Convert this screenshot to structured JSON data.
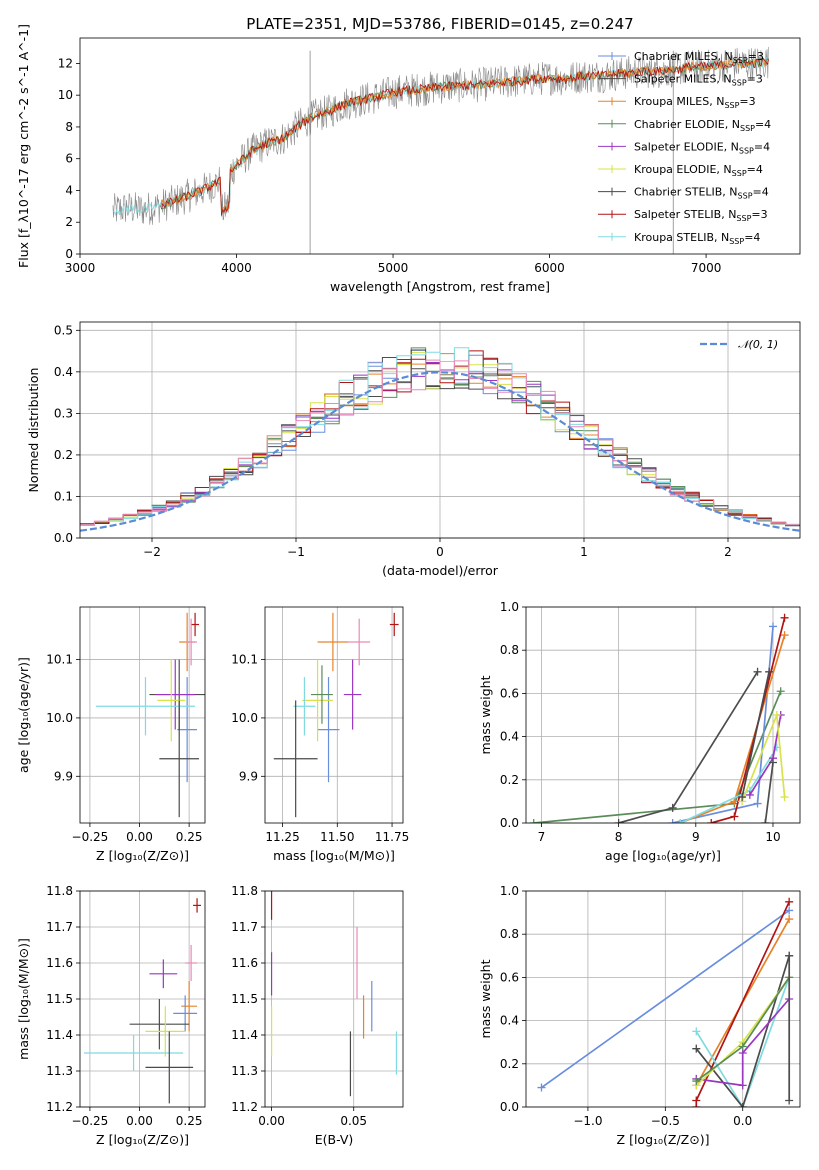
{
  "title": "PLATE=2351, MJD=53786, FIBERID=0145, z=0.247",
  "colors": {
    "Chabrier MILES": "#6a8ede",
    "Salpeter MILES": "#4d4d4d",
    "Kroupa MILES": "#e6832a",
    "Chabrier ELODIE": "#5a8c5a",
    "Salpeter ELODIE": "#9b36c2",
    "Kroupa ELODIE": "#d8e34a",
    "Chabrier STELIB": "#4a4a4a",
    "Salpeter STELIB": "#b01414",
    "Kroupa STELIB": "#7fdbe0",
    "pink": "#e88ab8",
    "normal": "#5b8bd6"
  },
  "chart_data": [
    {
      "id": "spectrum",
      "type": "line",
      "xlabel": "wavelength [Angstrom, rest frame]",
      "ylabel": "Flux [f_λ10^-17 erg cm^-2 s^-1 A^-1]",
      "xlim": [
        3000,
        7600
      ],
      "ylim": [
        0,
        13.6
      ],
      "xticks": [
        3000,
        4000,
        5000,
        6000,
        7000
      ],
      "yticks": [
        0,
        2,
        4,
        6,
        8,
        10,
        12
      ],
      "grid": false,
      "legend_position": "top-right",
      "legend": [
        {
          "label": "Chabrier MILES, N",
          "sub": "SSP",
          "tail": "=3",
          "color_key": "Chabrier MILES"
        },
        {
          "label": "Salpeter MILES, N",
          "sub": "SSP",
          "tail": "=3",
          "color_key": "Salpeter MILES"
        },
        {
          "label": "Kroupa MILES, N",
          "sub": "SSP",
          "tail": "=3",
          "color_key": "Kroupa MILES"
        },
        {
          "label": "Chabrier ELODIE, N",
          "sub": "SSP",
          "tail": "=4",
          "color_key": "Chabrier ELODIE"
        },
        {
          "label": "Salpeter ELODIE, N",
          "sub": "SSP",
          "tail": "=4",
          "color_key": "Salpeter ELODIE"
        },
        {
          "label": "Kroupa ELODIE, N",
          "sub": "SSP",
          "tail": "=4",
          "color_key": "Kroupa ELODIE"
        },
        {
          "label": "Chabrier STELIB, N",
          "sub": "SSP",
          "tail": "=4",
          "color_key": "Chabrier STELIB"
        },
        {
          "label": "Salpeter STELIB, N",
          "sub": "SSP",
          "tail": "=3",
          "color_key": "Salpeter STELIB"
        },
        {
          "label": "Kroupa STELIB, N",
          "sub": "SSP",
          "tail": "=4",
          "color_key": "Kroupa STELIB"
        }
      ],
      "envelope_x": [
        3200,
        3300,
        3400,
        3500,
        3600,
        3700,
        3800,
        3900,
        4000,
        4100,
        4200,
        4300,
        4400,
        4500,
        4600,
        4700,
        4800,
        4900,
        5000,
        5100,
        5200,
        5300,
        5400,
        5500,
        5600,
        5700,
        5800,
        5900,
        6000,
        6100,
        6200,
        6300,
        6400,
        6500,
        6600,
        6700,
        6800,
        6900,
        7000,
        7100,
        7200,
        7300,
        7400
      ],
      "envelope_y": [
        2.7,
        2.9,
        2.8,
        3.0,
        3.3,
        3.7,
        4.1,
        4.6,
        5.6,
        6.5,
        7.0,
        7.3,
        8.1,
        8.7,
        9.0,
        9.5,
        9.7,
        9.9,
        10.2,
        10.3,
        10.4,
        10.5,
        10.6,
        10.6,
        10.7,
        10.8,
        10.9,
        11.0,
        11.1,
        11.0,
        11.2,
        11.2,
        11.3,
        11.4,
        11.5,
        11.5,
        11.6,
        11.8,
        11.8,
        11.9,
        12.0,
        12.0,
        12.1
      ]
    },
    {
      "id": "residuals",
      "type": "line",
      "xlabel": "(data-model)/error",
      "ylabel": "Normed distribution",
      "xlim": [
        -2.5,
        2.5
      ],
      "ylim": [
        0,
        0.52
      ],
      "xticks": [
        -2,
        -1,
        0,
        1,
        2
      ],
      "yticks": [
        0.0,
        0.1,
        0.2,
        0.3,
        0.4,
        0.5
      ],
      "grid": true,
      "legend_position": "top-right",
      "normal_label": "𝒩(0, 1)",
      "hist_series": [
        "Chabrier MILES",
        "Salpeter MILES",
        "Kroupa MILES",
        "Chabrier ELODIE",
        "Salpeter ELODIE",
        "Kroupa ELODIE",
        "Chabrier STELIB",
        "Salpeter STELIB",
        "Kroupa STELIB"
      ]
    },
    {
      "id": "age_vs_Z",
      "type": "scatter",
      "xlabel": "Z [log₁₀(Z/Z⊙)]",
      "ylabel": "age  [log₁₀(age/yr)]",
      "xlim": [
        -0.3,
        0.33
      ],
      "ylim": [
        9.82,
        10.19
      ],
      "xticks": [
        -0.25,
        0.0,
        0.25
      ],
      "yticks": [
        9.9,
        10.0,
        10.1
      ],
      "grid": true,
      "points": [
        {
          "c": "Salpeter STELIB",
          "x": 0.28,
          "xerr": 0.02,
          "y": 10.16,
          "yerr": 0.02
        },
        {
          "c": "Kroupa MILES",
          "x": 0.24,
          "xerr": 0.04,
          "y": 10.13,
          "yerr": 0.05
        },
        {
          "c": "pink",
          "x": 0.26,
          "xerr": 0.03,
          "y": 10.13,
          "yerr": 0.04
        },
        {
          "c": "Chabrier MILES",
          "x": 0.24,
          "xerr": 0.05,
          "y": 9.98,
          "yerr": 0.09
        },
        {
          "c": "Salpeter MILES",
          "x": 0.2,
          "xerr": 0.15,
          "y": 10.04,
          "yerr": 0.06
        },
        {
          "c": "Salpeter ELODIE",
          "x": 0.18,
          "xerr": 0.1,
          "y": 10.04,
          "yerr": 0.06
        },
        {
          "c": "Kroupa ELODIE",
          "x": 0.16,
          "xerr": 0.07,
          "y": 10.03,
          "yerr": 0.07
        },
        {
          "c": "Kroupa STELIB",
          "x": 0.03,
          "xerr": 0.25,
          "y": 10.02,
          "yerr": 0.05
        },
        {
          "c": "Chabrier STELIB",
          "x": 0.2,
          "xerr": 0.1,
          "y": 9.93,
          "yerr": 0.1
        }
      ]
    },
    {
      "id": "age_vs_mass",
      "type": "scatter",
      "xlabel": "mass [log₁₀(M/M⊙)]",
      "ylabel": "",
      "xlim": [
        11.17,
        11.8
      ],
      "ylim": [
        9.82,
        10.19
      ],
      "xticks": [
        11.25,
        11.5,
        11.75
      ],
      "yticks": [
        9.9,
        10.0,
        10.1
      ],
      "grid": true,
      "points": [
        {
          "c": "Salpeter STELIB",
          "x": 11.76,
          "xerr": 0.02,
          "y": 10.16,
          "yerr": 0.02
        },
        {
          "c": "Kroupa MILES",
          "x": 11.48,
          "xerr": 0.07,
          "y": 10.13,
          "yerr": 0.05
        },
        {
          "c": "pink",
          "x": 11.6,
          "xerr": 0.05,
          "y": 10.13,
          "yerr": 0.04
        },
        {
          "c": "Chabrier MILES",
          "x": 11.46,
          "xerr": 0.05,
          "y": 9.98,
          "yerr": 0.09
        },
        {
          "c": "Salpeter ELODIE",
          "x": 11.57,
          "xerr": 0.04,
          "y": 10.04,
          "yerr": 0.06
        },
        {
          "c": "Kroupa ELODIE",
          "x": 11.41,
          "xerr": 0.07,
          "y": 10.03,
          "yerr": 0.07
        },
        {
          "c": "Chabrier ELODIE",
          "x": 11.43,
          "xerr": 0.05,
          "y": 10.04,
          "yerr": 0.05
        },
        {
          "c": "Kroupa STELIB",
          "x": 11.35,
          "xerr": 0.05,
          "y": 10.02,
          "yerr": 0.05
        },
        {
          "c": "Chabrier STELIB",
          "x": 11.31,
          "xerr": 0.1,
          "y": 9.93,
          "yerr": 0.1
        }
      ]
    },
    {
      "id": "weight_vs_age",
      "type": "line",
      "xlabel": "age  [log₁₀(age/yr)]",
      "ylabel": "mass weight",
      "xlim": [
        6.8,
        10.35
      ],
      "ylim": [
        0,
        1.0
      ],
      "xticks": [
        7,
        8,
        9,
        10
      ],
      "yticks": [
        0.0,
        0.2,
        0.4,
        0.6,
        0.8,
        1.0
      ],
      "grid": true,
      "series": [
        {
          "c": "Chabrier ELODIE",
          "x": [
            6.9,
            9.5,
            10.1
          ],
          "y": [
            0.0,
            0.09,
            0.61
          ]
        },
        {
          "c": "Salpeter MILES",
          "x": [
            8.0,
            8.7,
            9.8
          ],
          "y": [
            0.0,
            0.07,
            0.7
          ]
        },
        {
          "c": "Chabrier MILES",
          "x": [
            8.7,
            9.8,
            10.0
          ],
          "y": [
            0.0,
            0.09,
            0.91
          ]
        },
        {
          "c": "Kroupa MILES",
          "x": [
            8.8,
            9.5,
            10.15
          ],
          "y": [
            0.0,
            0.1,
            0.87
          ]
        },
        {
          "c": "Salpeter STELIB",
          "x": [
            9.2,
            9.5,
            10.15
          ],
          "y": [
            0.0,
            0.03,
            0.95
          ]
        },
        {
          "c": "Kroupa STELIB",
          "x": [
            8.8,
            9.7,
            10.05
          ],
          "y": [
            0.0,
            0.15,
            0.35
          ]
        },
        {
          "c": "Salpeter ELODIE",
          "x": [
            9.7,
            10.0,
            10.1
          ],
          "y": [
            0.13,
            0.3,
            0.5
          ]
        },
        {
          "c": "Kroupa ELODIE",
          "x": [
            9.6,
            10.05,
            10.15
          ],
          "y": [
            0.1,
            0.5,
            0.12
          ]
        },
        {
          "c": "Salpeter MILES",
          "x": [
            9.9,
            10.0
          ],
          "y": [
            0.0,
            0.28
          ]
        },
        {
          "c": "Chabrier STELIB",
          "x": [
            9.6,
            9.95
          ],
          "y": [
            0.12,
            0.7
          ]
        }
      ]
    },
    {
      "id": "mass_vs_Z",
      "type": "scatter",
      "xlabel": "Z [log₁₀(Z/Z⊙)]",
      "ylabel": "mass [log₁₀(M/M⊙)]",
      "xlim": [
        -0.3,
        0.33
      ],
      "ylim": [
        11.2,
        11.8
      ],
      "xticks": [
        -0.25,
        0.0,
        0.25
      ],
      "yticks": [
        11.2,
        11.3,
        11.4,
        11.5,
        11.6,
        11.7,
        11.8
      ],
      "grid": true,
      "points": [
        {
          "c": "Salpeter STELIB",
          "x": 0.29,
          "xerr": 0.02,
          "y": 11.76,
          "yerr": 0.02
        },
        {
          "c": "pink",
          "x": 0.26,
          "xerr": 0.03,
          "y": 11.6,
          "yerr": 0.05
        },
        {
          "c": "Salpeter ELODIE",
          "x": 0.12,
          "xerr": 0.07,
          "y": 11.57,
          "yerr": 0.04
        },
        {
          "c": "Kroupa MILES",
          "x": 0.25,
          "xerr": 0.04,
          "y": 11.48,
          "yerr": 0.07
        },
        {
          "c": "Chabrier MILES",
          "x": 0.23,
          "xerr": 0.06,
          "y": 11.46,
          "yerr": 0.05
        },
        {
          "c": "Salpeter MILES",
          "x": 0.1,
          "xerr": 0.15,
          "y": 11.43,
          "yerr": 0.07
        },
        {
          "c": "Kroupa ELODIE",
          "x": 0.13,
          "xerr": 0.1,
          "y": 11.41,
          "yerr": 0.07
        },
        {
          "c": "Kroupa STELIB",
          "x": -0.03,
          "xerr": 0.25,
          "y": 11.35,
          "yerr": 0.05
        },
        {
          "c": "Chabrier STELIB",
          "x": 0.15,
          "xerr": 0.12,
          "y": 11.31,
          "yerr": 0.1
        }
      ]
    },
    {
      "id": "mass_vs_ebv",
      "type": "scatter",
      "xlabel": "E(B-V)",
      "ylabel": "",
      "xlim": [
        -0.004,
        0.08
      ],
      "ylim": [
        11.2,
        11.8
      ],
      "xticks": [
        0.0,
        0.05
      ],
      "yticks": [
        11.2,
        11.3,
        11.4,
        11.5,
        11.6,
        11.7,
        11.8
      ],
      "grid": true,
      "points": [
        {
          "c": "Salpeter STELIB",
          "x": 0.0,
          "xerr": 0.0,
          "y": 11.76,
          "yerr": 0.04
        },
        {
          "c": "Salpeter ELODIE",
          "x": 0.0,
          "xerr": 0.0,
          "y": 11.57,
          "yerr": 0.06
        },
        {
          "c": "Kroupa ELODIE",
          "x": 0.0,
          "xerr": 0.0,
          "y": 11.41,
          "yerr": 0.07
        },
        {
          "c": "pink",
          "x": 0.052,
          "xerr": 0.0,
          "y": 11.6,
          "yerr": 0.1
        },
        {
          "c": "Chabrier MILES",
          "x": 0.061,
          "xerr": 0.0,
          "y": 11.48,
          "yerr": 0.07
        },
        {
          "c": "Kroupa MILES",
          "x": 0.056,
          "xerr": 0.0,
          "y": 11.45,
          "yerr": 0.06
        },
        {
          "c": "Chabrier STELIB",
          "x": 0.048,
          "xerr": 0.0,
          "y": 11.32,
          "yerr": 0.09
        },
        {
          "c": "Kroupa STELIB",
          "x": 0.076,
          "xerr": 0.0,
          "y": 11.35,
          "yerr": 0.06
        }
      ]
    },
    {
      "id": "weight_vs_Z",
      "type": "line",
      "xlabel": "Z [log₁₀(Z/Z⊙)]",
      "ylabel": "mass weight",
      "xlim": [
        -1.4,
        0.37
      ],
      "ylim": [
        0,
        1.0
      ],
      "xticks": [
        -1.0,
        -0.5,
        0.0
      ],
      "yticks": [
        0.0,
        0.2,
        0.4,
        0.6,
        0.8,
        1.0
      ],
      "grid": true,
      "series": [
        {
          "c": "Chabrier MILES",
          "x": [
            -1.3,
            0.3
          ],
          "y": [
            0.09,
            0.91
          ]
        },
        {
          "c": "Kroupa MILES",
          "x": [
            -0.3,
            0.3
          ],
          "y": [
            0.1,
            0.87
          ]
        },
        {
          "c": "Salpeter STELIB",
          "x": [
            -0.3,
            -0.3,
            0.3
          ],
          "y": [
            0.0,
            0.03,
            0.95
          ]
        },
        {
          "c": "Kroupa STELIB",
          "x": [
            -0.3,
            0.0,
            0.3
          ],
          "y": [
            0.35,
            0.0,
            0.6
          ]
        },
        {
          "c": "Chabrier STELIB",
          "x": [
            -0.3,
            0.0,
            0.3
          ],
          "y": [
            0.27,
            0.0,
            0.7
          ]
        },
        {
          "c": "Salpeter ELODIE",
          "x": [
            -0.3,
            0.0,
            0.0,
            0.3
          ],
          "y": [
            0.13,
            0.1,
            0.25,
            0.5
          ]
        },
        {
          "c": "Kroupa ELODIE",
          "x": [
            -0.3,
            0.0,
            0.3
          ],
          "y": [
            0.1,
            0.3,
            0.6
          ]
        },
        {
          "c": "Chabrier ELODIE",
          "x": [
            -0.3,
            0.0,
            0.3
          ],
          "y": [
            0.12,
            0.28,
            0.6
          ]
        },
        {
          "c": "Salpeter MILES",
          "x": [
            0.3,
            0.3
          ],
          "y": [
            0.03,
            0.7
          ]
        }
      ]
    }
  ]
}
